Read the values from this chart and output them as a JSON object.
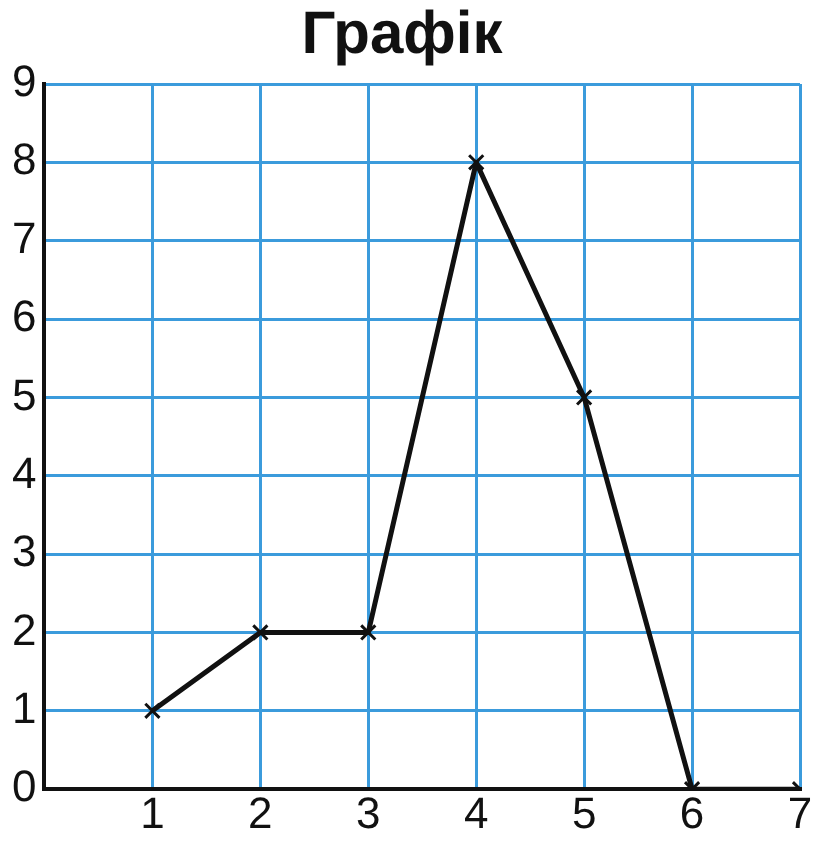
{
  "chart_data": {
    "type": "line",
    "title": "Графік",
    "x": [
      1,
      2,
      3,
      4,
      5,
      6,
      7
    ],
    "series": [
      {
        "color": "#111111",
        "values": [
          1,
          2,
          2,
          8,
          5,
          0,
          0
        ]
      }
    ],
    "xlim": [
      0,
      7
    ],
    "xticks": [
      1,
      2,
      3,
      4,
      5,
      6,
      7
    ],
    "ylim": [
      0,
      9
    ],
    "yticks": [
      0,
      1,
      2,
      3,
      4,
      5,
      6,
      7,
      8,
      9
    ],
    "grid": true,
    "legend": false,
    "marker": "cross",
    "line_style": "solid"
  }
}
